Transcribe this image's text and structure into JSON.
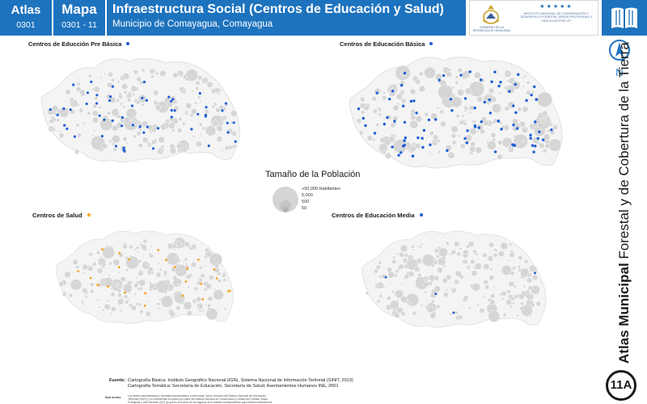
{
  "header": {
    "atlas_label": "Atlas",
    "atlas_code": "0301",
    "mapa_label": "Mapa",
    "mapa_code": "0301 - 11",
    "title": "Infraestructura Social (Centros de Educación y Salud)",
    "subtitle": "Municipio de Comayagua, Comayagua",
    "gov_logo_text": "GOBIERNO DE LA REPÚBLICA DE HONDURAS",
    "institute_logo_text": "INSTITUTO NACIONAL DE CONSERVACIÓN Y DESARROLLO FORESTAL ÁREAS PROTEGIDAS Y VIDA SILVESTRE ICF",
    "institute_stars": "★★★★★",
    "book_icon": "open-book-icon",
    "colors": {
      "brand_blue": "#1e73be",
      "header_text": "#ffffff"
    }
  },
  "sidebar": {
    "north_label": "N",
    "vertical_title_bold": "Atlas Municipal",
    "vertical_title_rest": "Forestal y de Cobertura de la Tierra",
    "page_badge": "11A"
  },
  "panels": {
    "preb": {
      "title": "Centros de Educción Pre Básica",
      "color": "#1f5fd6"
    },
    "basica": {
      "title": "Centros de Educación Básica",
      "color": "#1f5fd6"
    },
    "salud": {
      "title": "Centros de Salud",
      "color": "#f5a623"
    },
    "media": {
      "title": "Centros de Educación Media",
      "color": "#1f5fd6"
    }
  },
  "population_legend": {
    "title": "Tamaño de la Población",
    "levels": [
      "+50,000 Habitantes",
      "5,000",
      "500",
      "50"
    ],
    "circle_color": "#d4d4d4"
  },
  "sources": {
    "label": "Fuente:",
    "lines": [
      "Cartografía Básica: Instituto Geográfico Nacional (IGN), Sistema Nacional de Información Teritorial (SINIT, 2013)",
      "Cartografía Temática: Secretaría de Educación, Secretaría de Salud; Asentamientos Humanos INE, 2001"
    ],
    "note_label": "Nota técnica:",
    "note_text": "Los límites administrativos y forestales representados a este mapa, fueron tomados del Sistema Nacional de Información Territorial (SINIT) y no representan la opinión por parte del Instituto Nacional de Conservación y Desarrollo Forestal, Áreas Protegidas y Vida Silvestre (ICF) ya que es la función de los órganos de la entidad correspondiente para efectos estrictamente cartográficos institucionales."
  }
}
